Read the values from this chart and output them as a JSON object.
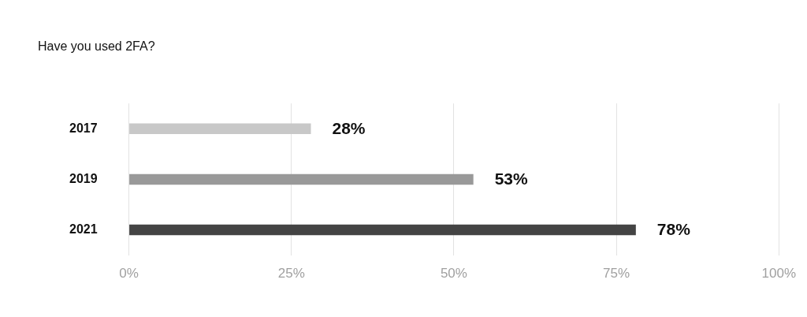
{
  "chart_data": {
    "type": "bar",
    "orientation": "horizontal",
    "title": "Have you used 2FA?",
    "categories": [
      "2017",
      "2019",
      "2021"
    ],
    "values": [
      28,
      53,
      78
    ],
    "colors": [
      "#c8c8c8",
      "#999999",
      "#444444"
    ],
    "value_labels": [
      "28%",
      "53%",
      "78%"
    ],
    "xlim": [
      0,
      100
    ],
    "xticks": [
      {
        "value": 0,
        "label": "0%"
      },
      {
        "value": 25,
        "label": "25%"
      },
      {
        "value": 50,
        "label": "50%"
      },
      {
        "value": 75,
        "label": "75%"
      },
      {
        "value": 100,
        "label": "100%"
      }
    ],
    "grid": "x",
    "legend": false
  }
}
